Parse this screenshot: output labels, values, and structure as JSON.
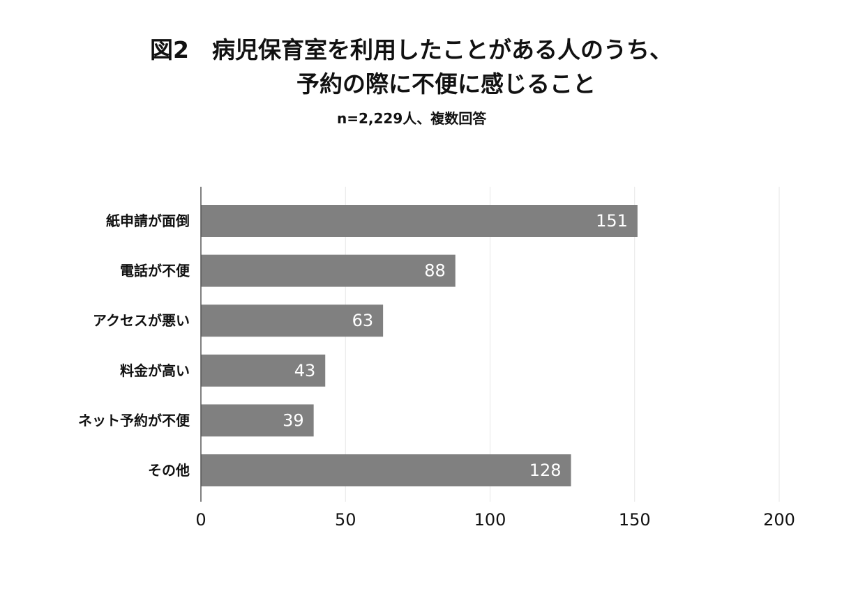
{
  "title": {
    "line1": "図2　病児保育室を利用したことがある人のうち、",
    "line2": "予約の際に不便に感じること"
  },
  "subtitle": "n=2,229人、複数回答",
  "colors": {
    "bar": "#808080",
    "grid": "#e6e6e6",
    "axis": "#555555",
    "data_label": "#ffffff",
    "text": "#111111"
  },
  "chart_data": {
    "type": "bar",
    "orientation": "horizontal",
    "categories": [
      "紙申請が面倒",
      "電話が不便",
      "アクセスが悪い",
      "料金が高い",
      "ネット予約が不便",
      "その他"
    ],
    "values": [
      151,
      88,
      63,
      43,
      39,
      128
    ],
    "data_labels": [
      "151",
      "88",
      "63",
      "43",
      "39",
      "128"
    ],
    "xlim": [
      0,
      200
    ],
    "xticks": [
      0,
      50,
      100,
      150,
      200
    ],
    "tick_labels": [
      "0",
      "50",
      "100",
      "150",
      "200"
    ],
    "grid": true,
    "legend": "none",
    "xlabel": "",
    "ylabel": ""
  }
}
